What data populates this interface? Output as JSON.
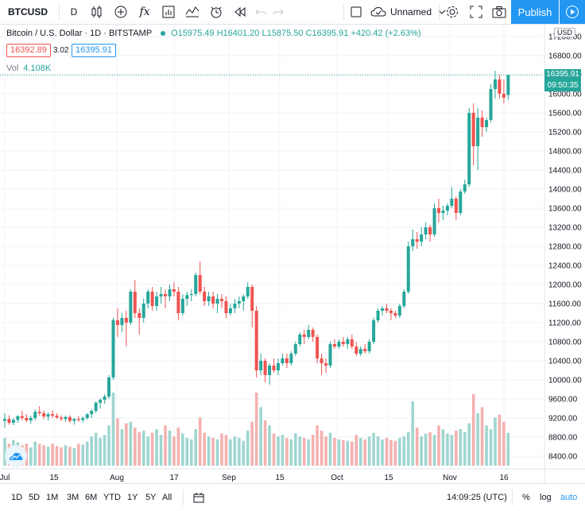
{
  "toolbar": {
    "symbol": "BTCUSD",
    "interval": "D",
    "fx_label": "fx",
    "layout_name": "Unnamed",
    "publish_label": "Publish"
  },
  "legend": {
    "title": "Bitcoin / U.S. Dollar · 1D · BITSTAMP",
    "open": "O15975.49",
    "high": "H16401.20",
    "low": "L15875.50",
    "close": "C16395.91",
    "change": "+420.42 (+2.63%)",
    "bid": "16392.89",
    "spread": "3.02",
    "ask": "16395.91",
    "vol_label": "Vol",
    "vol_value": "4.108K"
  },
  "price_axis": {
    "currency": "USD",
    "labels": [
      "17200.00",
      "16800.00",
      "16400.00",
      "16000.00",
      "15600.00",
      "15200.00",
      "14800.00",
      "14400.00",
      "14000.00",
      "13600.00",
      "13200.00",
      "12800.00",
      "12400.00",
      "12000.00",
      "11600.00",
      "11200.00",
      "10800.00",
      "10400.00",
      "10000.00",
      "9600.00",
      "9200.00",
      "8800.00",
      "8400.00"
    ],
    "last_price": "16395.91",
    "countdown": "09:50:35"
  },
  "time_axis": {
    "labels": [
      "Jul",
      "15",
      "Aug",
      "17",
      "Sep",
      "15",
      "Oct",
      "15",
      "Nov",
      "16"
    ]
  },
  "bottombar": {
    "ranges": [
      "1D",
      "5D",
      "1M",
      "3M",
      "6M",
      "YTD",
      "1Y",
      "5Y",
      "All"
    ],
    "clock": "14:09:25 (UTC)",
    "percent": "%",
    "log": "log",
    "auto": "auto"
  },
  "colors": {
    "up": "#26a69a",
    "down": "#ef5350",
    "accent": "#2196f3"
  },
  "chart_data": {
    "type": "candlestick",
    "ylim": [
      8300,
      17300
    ],
    "x_ticks": [
      "Jul",
      "15",
      "Aug",
      "17",
      "Sep",
      "15",
      "Oct",
      "15",
      "Nov",
      "16"
    ],
    "candles": [
      [
        9140,
        9300,
        9000,
        9180
      ],
      [
        9180,
        9260,
        9060,
        9100
      ],
      [
        9100,
        9200,
        9050,
        9160
      ],
      [
        9160,
        9260,
        9100,
        9240
      ],
      [
        9240,
        9350,
        9150,
        9200
      ],
      [
        9200,
        9280,
        9120,
        9150
      ],
      [
        9150,
        9250,
        9080,
        9200
      ],
      [
        9200,
        9380,
        9150,
        9330
      ],
      [
        9330,
        9450,
        9250,
        9300
      ],
      [
        9300,
        9360,
        9180,
        9230
      ],
      [
        9230,
        9320,
        9150,
        9280
      ],
      [
        9280,
        9360,
        9200,
        9250
      ],
      [
        9250,
        9300,
        9180,
        9210
      ],
      [
        9210,
        9260,
        9140,
        9180
      ],
      [
        9180,
        9250,
        9120,
        9220
      ],
      [
        9220,
        9260,
        9100,
        9140
      ],
      [
        9140,
        9200,
        9060,
        9180
      ],
      [
        9180,
        9240,
        9120,
        9160
      ],
      [
        9160,
        9230,
        9100,
        9200
      ],
      [
        9200,
        9300,
        9160,
        9280
      ],
      [
        9280,
        9380,
        9200,
        9350
      ],
      [
        9350,
        9550,
        9300,
        9520
      ],
      [
        9520,
        9620,
        9400,
        9580
      ],
      [
        9580,
        9700,
        9500,
        9650
      ],
      [
        9650,
        10100,
        9600,
        10050
      ],
      [
        10050,
        11300,
        10000,
        11250
      ],
      [
        11250,
        11500,
        10900,
        11150
      ],
      [
        11150,
        11400,
        11000,
        11300
      ],
      [
        11300,
        11450,
        10700,
        11200
      ],
      [
        11200,
        11900,
        11150,
        11850
      ],
      [
        11850,
        12100,
        11300,
        11400
      ],
      [
        11400,
        11500,
        10950,
        11300
      ],
      [
        11300,
        11700,
        11200,
        11600
      ],
      [
        11600,
        11900,
        11500,
        11850
      ],
      [
        11850,
        11950,
        11450,
        11550
      ],
      [
        11550,
        11850,
        11450,
        11750
      ],
      [
        11750,
        11950,
        11600,
        11800
      ],
      [
        11800,
        11900,
        11500,
        11750
      ],
      [
        11750,
        12000,
        11650,
        11900
      ],
      [
        11900,
        12050,
        11750,
        11850
      ],
      [
        11850,
        11950,
        11250,
        11400
      ],
      [
        11400,
        11800,
        11350,
        11700
      ],
      [
        11700,
        11850,
        11550,
        11780
      ],
      [
        11780,
        11900,
        11650,
        11800
      ],
      [
        11800,
        12250,
        11750,
        12200
      ],
      [
        12200,
        12480,
        11800,
        11850
      ],
      [
        11850,
        11950,
        11550,
        11650
      ],
      [
        11650,
        11850,
        11550,
        11750
      ],
      [
        11750,
        11850,
        11500,
        11600
      ],
      [
        11600,
        11800,
        11400,
        11700
      ],
      [
        11700,
        11800,
        11500,
        11650
      ],
      [
        11650,
        11750,
        11300,
        11400
      ],
      [
        11400,
        11600,
        11350,
        11500
      ],
      [
        11500,
        11700,
        11400,
        11600
      ],
      [
        11600,
        11750,
        11500,
        11650
      ],
      [
        11650,
        11800,
        11450,
        11750
      ],
      [
        11750,
        12050,
        11700,
        11950
      ],
      [
        11950,
        12000,
        11100,
        11450
      ],
      [
        11450,
        11550,
        10050,
        10200
      ],
      [
        10200,
        10550,
        10100,
        10400
      ],
      [
        10400,
        10450,
        9950,
        10100
      ],
      [
        10100,
        10350,
        9900,
        10300
      ],
      [
        10300,
        10450,
        10150,
        10200
      ],
      [
        10200,
        10450,
        10100,
        10350
      ],
      [
        10350,
        10550,
        10300,
        10450
      ],
      [
        10450,
        10550,
        10250,
        10350
      ],
      [
        10350,
        10600,
        10300,
        10550
      ],
      [
        10550,
        10800,
        10500,
        10750
      ],
      [
        10750,
        11000,
        10700,
        10950
      ],
      [
        10950,
        11050,
        10750,
        10900
      ],
      [
        10900,
        11150,
        10850,
        11050
      ],
      [
        11050,
        11100,
        10800,
        10900
      ],
      [
        10900,
        10950,
        10350,
        10450
      ],
      [
        10450,
        10550,
        10100,
        10350
      ],
      [
        10350,
        10450,
        10150,
        10300
      ],
      [
        10300,
        10800,
        10250,
        10750
      ],
      [
        10750,
        10850,
        10650,
        10700
      ],
      [
        10700,
        10850,
        10650,
        10800
      ],
      [
        10800,
        10900,
        10700,
        10750
      ],
      [
        10750,
        10900,
        10650,
        10850
      ],
      [
        10850,
        10950,
        10650,
        10700
      ],
      [
        10700,
        10800,
        10500,
        10550
      ],
      [
        10550,
        10700,
        10500,
        10650
      ],
      [
        10650,
        10750,
        10550,
        10600
      ],
      [
        10600,
        10850,
        10550,
        10800
      ],
      [
        10800,
        11300,
        10750,
        11250
      ],
      [
        11250,
        11500,
        11200,
        11450
      ],
      [
        11450,
        11550,
        11350,
        11500
      ],
      [
        11500,
        11600,
        11400,
        11450
      ],
      [
        11450,
        11500,
        11250,
        11400
      ],
      [
        11400,
        11450,
        11300,
        11350
      ],
      [
        11350,
        11600,
        11300,
        11550
      ],
      [
        11550,
        11900,
        11500,
        11850
      ],
      [
        11850,
        12900,
        11800,
        12800
      ],
      [
        12800,
        13150,
        12700,
        12950
      ],
      [
        12950,
        13100,
        12750,
        12900
      ],
      [
        12900,
        13200,
        12800,
        13050
      ],
      [
        13050,
        13300,
        12950,
        13200
      ],
      [
        13200,
        13250,
        12900,
        13050
      ],
      [
        13050,
        13700,
        13000,
        13600
      ],
      [
        13600,
        13800,
        13300,
        13500
      ],
      [
        13500,
        13650,
        13350,
        13550
      ],
      [
        13550,
        13700,
        13450,
        13650
      ],
      [
        13650,
        14050,
        13600,
        13800
      ],
      [
        13800,
        13850,
        13350,
        13500
      ],
      [
        13500,
        14000,
        13450,
        13950
      ],
      [
        13950,
        14200,
        13900,
        14100
      ],
      [
        14100,
        15700,
        14050,
        15600
      ],
      [
        15600,
        15800,
        14500,
        14900
      ],
      [
        14900,
        15700,
        14400,
        15500
      ],
      [
        15500,
        15650,
        15100,
        15300
      ],
      [
        15300,
        15500,
        15200,
        15450
      ],
      [
        15450,
        16200,
        15400,
        16100
      ],
      [
        16100,
        16480,
        15900,
        16300
      ],
      [
        16300,
        16400,
        15900,
        16000
      ],
      [
        16000,
        16300,
        15800,
        15920
      ],
      [
        15975.49,
        16401.2,
        15875.5,
        16395.91
      ]
    ],
    "volumes": [
      0.38,
      0.3,
      0.35,
      0.32,
      0.28,
      0.3,
      0.25,
      0.33,
      0.3,
      0.28,
      0.26,
      0.3,
      0.27,
      0.25,
      0.28,
      0.26,
      0.24,
      0.3,
      0.29,
      0.33,
      0.4,
      0.45,
      0.38,
      0.42,
      0.55,
      1.0,
      0.65,
      0.5,
      0.58,
      0.6,
      0.52,
      0.46,
      0.48,
      0.4,
      0.45,
      0.5,
      0.42,
      0.55,
      0.48,
      0.4,
      0.52,
      0.44,
      0.38,
      0.36,
      0.5,
      0.66,
      0.45,
      0.4,
      0.38,
      0.36,
      0.44,
      0.42,
      0.36,
      0.4,
      0.38,
      0.34,
      0.48,
      0.6,
      1.0,
      0.8,
      0.62,
      0.55,
      0.44,
      0.4,
      0.42,
      0.38,
      0.36,
      0.44,
      0.4,
      0.38,
      0.36,
      0.42,
      0.55,
      0.48,
      0.4,
      0.45,
      0.38,
      0.36,
      0.35,
      0.34,
      0.33,
      0.42,
      0.38,
      0.36,
      0.4,
      0.45,
      0.4,
      0.36,
      0.38,
      0.35,
      0.34,
      0.38,
      0.4,
      0.46,
      0.88,
      0.52,
      0.4,
      0.44,
      0.46,
      0.42,
      0.55,
      0.5,
      0.44,
      0.42,
      0.48,
      0.5,
      0.46,
      0.58,
      0.98,
      0.72,
      0.8,
      0.55,
      0.5,
      0.66,
      0.7,
      0.6,
      0.45,
      0.36
    ]
  }
}
